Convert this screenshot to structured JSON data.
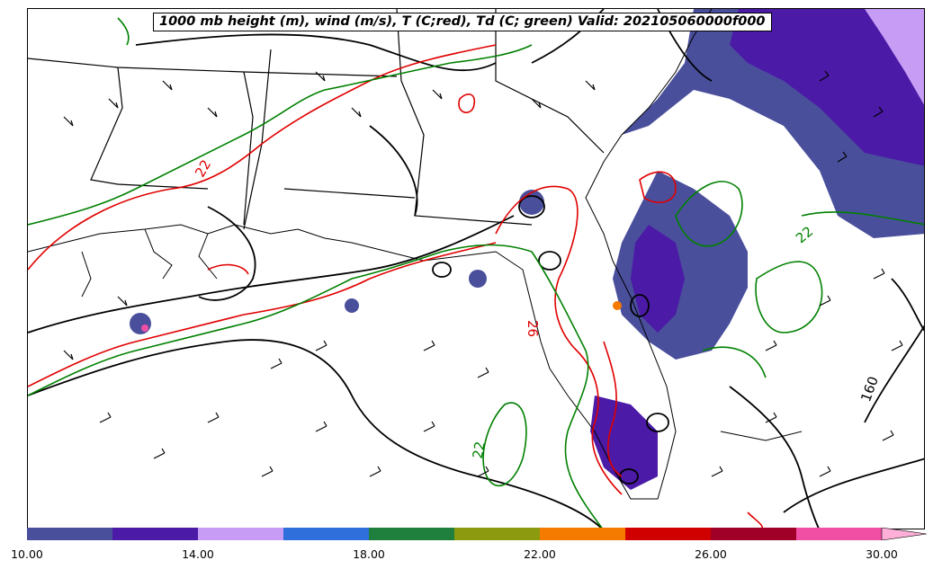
{
  "title": "1000 mb height (m), wind (m/s), T (C;red), Td (C; green) Valid: 202105060000f000",
  "contour_labels": {
    "temperature": [
      "22",
      "26"
    ],
    "dewpoint": [
      "22",
      "22"
    ],
    "height": [
      "160"
    ]
  },
  "colorbar": {
    "tick_labels": [
      "10.00",
      "14.00",
      "18.00",
      "22.00",
      "26.00",
      "30.00"
    ],
    "colors": [
      "#4a4f9c",
      "#4b1aa6",
      "#c69cf4",
      "#2f6fdc",
      "#1f7f3c",
      "#8c9a10",
      "#f57a00",
      "#d00000",
      "#a00028",
      "#f04fa4",
      "#ffb0d8"
    ]
  },
  "legend_colors": {
    "temperature": "#e00000",
    "dewpoint": "#008000",
    "height": "#000000",
    "coast": "#000000"
  }
}
